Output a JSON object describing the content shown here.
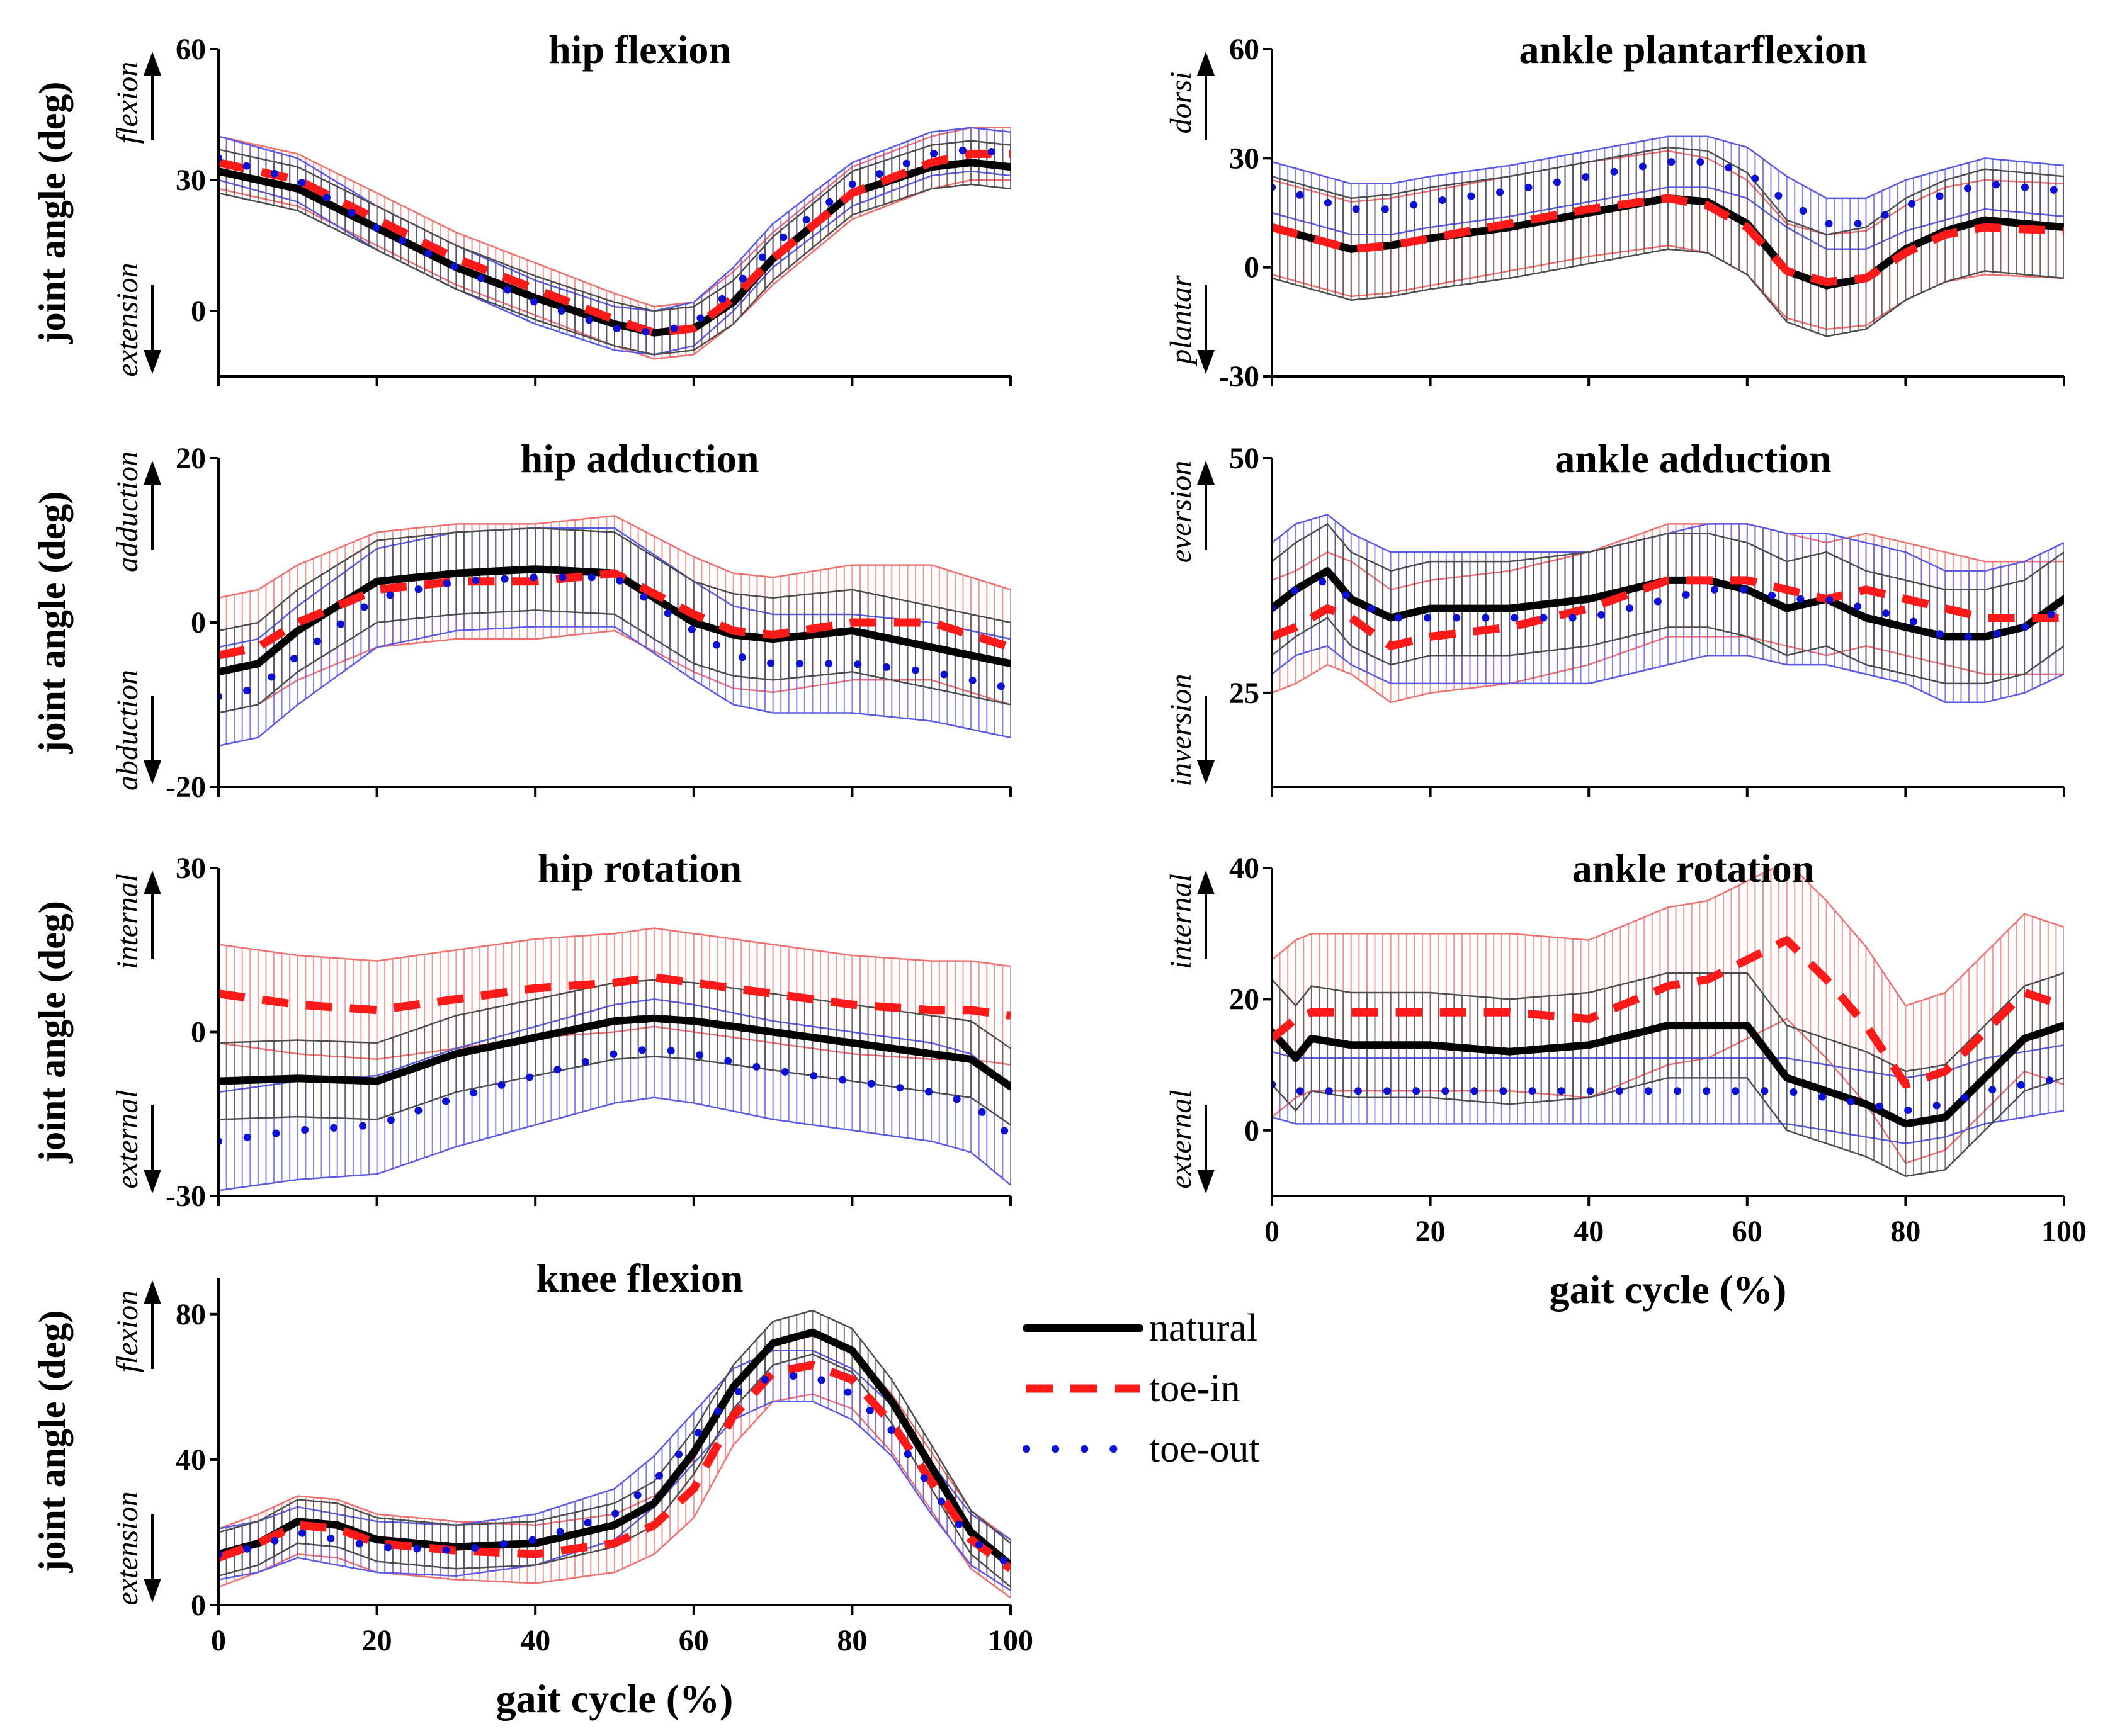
{
  "chart_data": [
    {
      "id": "hip-flexion",
      "type": "line",
      "title": "hip flexion",
      "ylabel": "joint angle (deg)",
      "xlabel": "",
      "dir_up": "flexion",
      "dir_down": "extension",
      "xlim": [
        0,
        100
      ],
      "ylim": [
        -15,
        60
      ],
      "yticks": [
        0,
        30,
        60
      ],
      "xticks": [],
      "series": [
        {
          "name": "natural",
          "x": [
            0,
            10,
            20,
            30,
            40,
            50,
            55,
            60,
            65,
            70,
            80,
            90,
            95,
            100
          ],
          "y": [
            32,
            28,
            19,
            10,
            3,
            -3,
            -5,
            -4,
            2,
            12,
            27,
            33,
            34,
            33
          ],
          "sd": 5
        },
        {
          "name": "toe-in",
          "x": [
            0,
            10,
            20,
            30,
            40,
            50,
            55,
            60,
            65,
            70,
            80,
            90,
            95,
            100
          ],
          "y": [
            34,
            30,
            21,
            12,
            5,
            -2,
            -5,
            -4,
            3,
            12,
            27,
            34,
            36,
            36
          ],
          "sd": 6
        },
        {
          "name": "toe-out",
          "x": [
            0,
            10,
            20,
            30,
            40,
            50,
            55,
            60,
            65,
            70,
            80,
            90,
            95,
            100
          ],
          "y": [
            35,
            30,
            19,
            10,
            2,
            -4,
            -5,
            -3,
            5,
            15,
            29,
            36,
            37,
            36
          ],
          "sd": 5
        }
      ]
    },
    {
      "id": "hip-adduction",
      "type": "line",
      "title": "hip adduction",
      "ylabel": "joint angle (deg)",
      "xlabel": "",
      "dir_up": "adduction",
      "dir_down": "abduction",
      "xlim": [
        0,
        100
      ],
      "ylim": [
        -20,
        20
      ],
      "yticks": [
        -20,
        0,
        20
      ],
      "xticks": [],
      "series": [
        {
          "name": "natural",
          "x": [
            0,
            5,
            10,
            20,
            30,
            40,
            50,
            60,
            65,
            70,
            80,
            90,
            100
          ],
          "y": [
            -6,
            -5,
            -1,
            5,
            6,
            6.5,
            6,
            0,
            -1.5,
            -2,
            -1,
            -3,
            -5
          ],
          "sd": 5
        },
        {
          "name": "toe-in",
          "x": [
            0,
            5,
            10,
            20,
            30,
            40,
            50,
            60,
            65,
            70,
            80,
            90,
            100
          ],
          "y": [
            -4,
            -3,
            0,
            4,
            5,
            5,
            6,
            1,
            -1,
            -1.5,
            0,
            0,
            -3
          ],
          "sd": 7
        },
        {
          "name": "toe-out",
          "x": [
            0,
            5,
            10,
            20,
            30,
            40,
            50,
            60,
            65,
            70,
            80,
            90,
            100
          ],
          "y": [
            -9,
            -8,
            -4,
            3,
            5,
            5.5,
            5.5,
            -1,
            -4,
            -5,
            -5,
            -6,
            -8
          ],
          "sd": 6
        }
      ]
    },
    {
      "id": "hip-rotation",
      "type": "line",
      "title": "hip rotation",
      "ylabel": "joint angle (deg)",
      "xlabel": "",
      "dir_up": "internal",
      "dir_down": "external",
      "xlim": [
        0,
        100
      ],
      "ylim": [
        -30,
        30
      ],
      "yticks": [
        -30,
        0,
        30
      ],
      "xticks": [],
      "series": [
        {
          "name": "natural",
          "x": [
            0,
            10,
            20,
            30,
            40,
            50,
            55,
            60,
            70,
            80,
            90,
            95,
            100
          ],
          "y": [
            -9,
            -8.5,
            -9,
            -4,
            -1,
            2,
            2.5,
            2,
            0,
            -2,
            -4,
            -5,
            -10
          ],
          "sd": 7
        },
        {
          "name": "toe-in",
          "x": [
            0,
            10,
            20,
            30,
            40,
            50,
            55,
            60,
            70,
            80,
            90,
            95,
            100
          ],
          "y": [
            7,
            5,
            4,
            6,
            8,
            9,
            10,
            9,
            7,
            5,
            4,
            4,
            3
          ],
          "sd": 9
        },
        {
          "name": "toe-out",
          "x": [
            0,
            10,
            20,
            30,
            40,
            50,
            55,
            60,
            70,
            80,
            90,
            95,
            100
          ],
          "y": [
            -20,
            -18,
            -17,
            -12,
            -8,
            -4,
            -3,
            -4,
            -7,
            -9,
            -11,
            -13,
            -19
          ],
          "sd": 9
        }
      ]
    },
    {
      "id": "knee-flexion",
      "type": "line",
      "title": "knee flexion",
      "ylabel": "joint angle (deg)",
      "xlabel": "gait cycle (%)",
      "dir_up": "flexion",
      "dir_down": "extension",
      "xlim": [
        0,
        100
      ],
      "ylim": [
        0,
        90
      ],
      "yticks": [
        0,
        40,
        80
      ],
      "xticks": [
        0,
        20,
        40,
        60,
        80,
        100
      ],
      "series": [
        {
          "name": "natural",
          "x": [
            0,
            5,
            10,
            15,
            20,
            30,
            40,
            50,
            55,
            60,
            65,
            70,
            75,
            80,
            85,
            90,
            95,
            100
          ],
          "y": [
            14,
            17,
            23,
            22,
            18,
            16,
            17,
            22,
            28,
            42,
            60,
            72,
            75,
            70,
            56,
            38,
            20,
            11
          ],
          "sd": 6
        },
        {
          "name": "toe-in",
          "x": [
            0,
            5,
            10,
            15,
            20,
            30,
            40,
            50,
            55,
            60,
            65,
            70,
            75,
            80,
            85,
            90,
            95,
            100
          ],
          "y": [
            13,
            17,
            22,
            21,
            17,
            15,
            14,
            17,
            22,
            32,
            52,
            64,
            66,
            62,
            50,
            34,
            18,
            10
          ],
          "sd": 8
        },
        {
          "name": "toe-out",
          "x": [
            0,
            5,
            10,
            15,
            20,
            30,
            40,
            50,
            55,
            60,
            65,
            70,
            75,
            80,
            85,
            90,
            95,
            100
          ],
          "y": [
            14,
            16,
            20,
            18,
            16,
            15,
            18,
            25,
            34,
            46,
            58,
            63,
            63,
            58,
            48,
            32,
            18,
            11
          ],
          "sd": 7
        }
      ]
    },
    {
      "id": "ankle-plantarflexion",
      "type": "line",
      "title": "ankle plantarflexion",
      "ylabel": "",
      "xlabel": "",
      "dir_up": "dorsi",
      "dir_down": "plantar",
      "xlim": [
        0,
        100
      ],
      "ylim": [
        -30,
        60
      ],
      "yticks": [
        -30,
        0,
        30,
        60
      ],
      "xticks": [],
      "series": [
        {
          "name": "natural",
          "x": [
            0,
            5,
            10,
            15,
            20,
            30,
            40,
            50,
            55,
            60,
            65,
            70,
            75,
            80,
            85,
            90,
            100
          ],
          "y": [
            11,
            8,
            5,
            6,
            8,
            11,
            15,
            19,
            18,
            12,
            -1,
            -5,
            -3,
            5,
            10,
            13,
            11
          ],
          "sd": 14
        },
        {
          "name": "toe-in",
          "x": [
            0,
            5,
            10,
            15,
            20,
            30,
            40,
            50,
            55,
            60,
            65,
            70,
            75,
            80,
            85,
            90,
            100
          ],
          "y": [
            11,
            8,
            5,
            6,
            8,
            12,
            16,
            19,
            17,
            11,
            -1,
            -4,
            -3,
            4,
            9,
            11,
            10
          ],
          "sd": 13
        },
        {
          "name": "toe-out",
          "x": [
            0,
            5,
            10,
            15,
            20,
            30,
            40,
            50,
            55,
            60,
            65,
            70,
            75,
            80,
            85,
            90,
            100
          ],
          "y": [
            22,
            19,
            16,
            16,
            18,
            21,
            25,
            29,
            29,
            26,
            18,
            12,
            12,
            17,
            20,
            23,
            21
          ],
          "sd": 7
        }
      ]
    },
    {
      "id": "ankle-adduction",
      "type": "line",
      "title": "ankle adduction",
      "ylabel": "",
      "xlabel": "",
      "dir_up": "eversion",
      "dir_down": "inversion",
      "xlim": [
        0,
        100
      ],
      "ylim": [
        15,
        50
      ],
      "yticks": [
        25,
        50
      ],
      "xticks": [],
      "series": [
        {
          "name": "natural",
          "x": [
            0,
            3,
            7,
            10,
            15,
            20,
            30,
            40,
            50,
            55,
            60,
            65,
            70,
            75,
            80,
            85,
            90,
            95,
            100
          ],
          "y": [
            34,
            36,
            38,
            35,
            33,
            34,
            34,
            35,
            37,
            37,
            36,
            34,
            35,
            33,
            32,
            31,
            31,
            32,
            35
          ],
          "sd": 5
        },
        {
          "name": "toe-in",
          "x": [
            0,
            3,
            7,
            10,
            15,
            20,
            30,
            40,
            50,
            55,
            60,
            65,
            70,
            75,
            80,
            85,
            90,
            95,
            100
          ],
          "y": [
            31,
            32,
            34,
            33,
            30,
            31,
            32,
            34,
            37,
            37,
            37,
            36,
            35,
            36,
            35,
            34,
            33,
            33,
            33
          ],
          "sd": 6
        },
        {
          "name": "toe-out",
          "x": [
            0,
            3,
            7,
            10,
            15,
            20,
            30,
            40,
            50,
            55,
            60,
            65,
            70,
            75,
            80,
            85,
            90,
            95,
            100
          ],
          "y": [
            34,
            36,
            37,
            35,
            33,
            33,
            33,
            33,
            35,
            36,
            36,
            35,
            35,
            34,
            33,
            31,
            31,
            32,
            34
          ],
          "sd": 7
        }
      ]
    },
    {
      "id": "ankle-rotation",
      "type": "line",
      "title": "ankle rotation",
      "ylabel": "",
      "xlabel": "gait cycle (%)",
      "dir_up": "internal",
      "dir_down": "external",
      "xlim": [
        0,
        100
      ],
      "ylim": [
        -10,
        40
      ],
      "yticks": [
        0,
        20,
        40
      ],
      "xticks": [
        0,
        20,
        40,
        60,
        80,
        100
      ],
      "series": [
        {
          "name": "natural",
          "x": [
            0,
            3,
            5,
            10,
            20,
            30,
            40,
            50,
            55,
            60,
            65,
            70,
            75,
            80,
            85,
            90,
            95,
            100
          ],
          "y": [
            15,
            11,
            14,
            13,
            13,
            12,
            13,
            16,
            16,
            16,
            8,
            6,
            4,
            1,
            2,
            8,
            14,
            16
          ],
          "sd": 8
        },
        {
          "name": "toe-in",
          "x": [
            0,
            3,
            5,
            10,
            20,
            30,
            40,
            50,
            55,
            60,
            65,
            70,
            75,
            80,
            85,
            90,
            95,
            100
          ],
          "y": [
            14,
            17,
            18,
            18,
            18,
            18,
            17,
            22,
            23,
            26,
            29,
            23,
            16,
            7,
            9,
            15,
            21,
            19
          ],
          "sd": 12
        },
        {
          "name": "toe-out",
          "x": [
            0,
            3,
            5,
            10,
            20,
            30,
            40,
            50,
            55,
            60,
            65,
            70,
            75,
            80,
            85,
            90,
            95,
            100
          ],
          "y": [
            7,
            6,
            6,
            6,
            6,
            6,
            6,
            6,
            6,
            6,
            6,
            5,
            4,
            3,
            4,
            6,
            7,
            8
          ],
          "sd": 5
        }
      ]
    }
  ],
  "legend": [
    {
      "label": "natural",
      "color": "#000000",
      "style": "solid"
    },
    {
      "label": "toe-in",
      "color": "#ff1a1a",
      "style": "dashed"
    },
    {
      "label": "toe-out",
      "color": "#0a10d6",
      "style": "dotted"
    }
  ],
  "colors": {
    "natural": "#000000",
    "toe-in": "#ff1a1a",
    "toe-out": "#0a10d6",
    "natural_band": "#4d4d4d",
    "toe-in_band": "#f07070",
    "toe-out_band": "#5a5ae6"
  }
}
